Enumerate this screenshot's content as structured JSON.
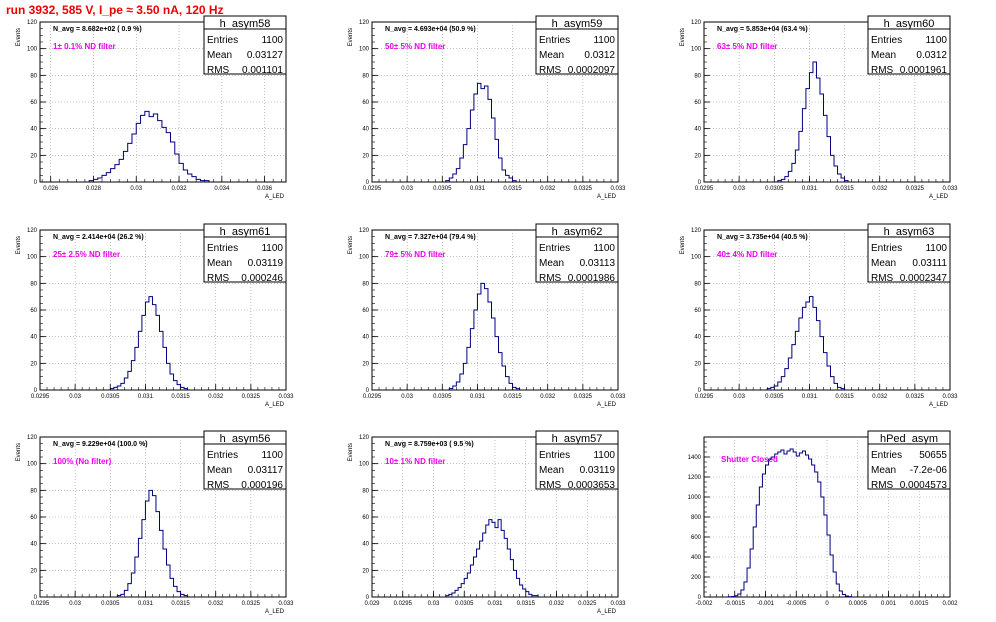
{
  "run_title": "run 3932,   585 V, I_pe ≈ 3.50 nA, 120 Hz",
  "colors": {
    "line": "#000080",
    "title_red": "#ee0000",
    "annot_magenta": "#ee00ee"
  },
  "stats_labels": {
    "entries": "Entries",
    "mean": "Mean",
    "rms": "RMS"
  },
  "chart_data": [
    {
      "type": "histogram",
      "name": "h_asym58",
      "ylabel": "Events",
      "xlabel": "A_LED",
      "navg": "N_avg = 8.682e+02 ( 0.9 %)",
      "filter": "1± 0.1% ND filter",
      "entries": "1100",
      "mean": "0.03127",
      "rms": "0.001101",
      "xlim": [
        0.0255,
        0.037
      ],
      "ylim": [
        0,
        120
      ],
      "xticks": [
        "0.026",
        "0.028",
        "0.03",
        "0.032",
        "0.034",
        "0.036"
      ],
      "xtick_values": [
        0.026,
        0.028,
        0.03,
        0.032,
        0.034,
        0.036
      ],
      "yticks": [
        "0",
        "20",
        "40",
        "60",
        "80",
        "100",
        "120"
      ],
      "bin_start": 0.0278,
      "bin_width": 0.0002,
      "values": [
        1,
        2,
        3,
        5,
        7,
        10,
        13,
        17,
        23,
        29,
        36,
        44,
        50,
        53,
        49,
        51,
        46,
        41,
        37,
        30,
        21,
        14,
        9,
        6,
        4,
        2,
        1,
        1
      ]
    },
    {
      "type": "histogram",
      "name": "h_asym59",
      "ylabel": "Events",
      "xlabel": "A_LED",
      "navg": "N_avg = 4.693e+04 (50.9 %)",
      "filter": "50± 5% ND filter",
      "entries": "1100",
      "mean": "0.0312",
      "rms": "0.0002097",
      "xlim": [
        0.0295,
        0.033
      ],
      "ylim": [
        0,
        120
      ],
      "xticks": [
        "0.0295",
        "0.03",
        "0.0305",
        "0.031",
        "0.0315",
        "0.032",
        "0.0325",
        "0.033"
      ],
      "xtick_values": [
        0.0295,
        0.03,
        0.0305,
        0.031,
        0.0315,
        0.032,
        0.0325,
        0.033
      ],
      "yticks": [
        "0",
        "20",
        "40",
        "60",
        "80",
        "100",
        "120"
      ],
      "bin_start": 0.03055,
      "bin_width": 5e-05,
      "values": [
        1,
        3,
        6,
        10,
        18,
        28,
        40,
        54,
        66,
        74,
        70,
        72,
        62,
        48,
        32,
        18,
        9,
        5,
        3,
        1
      ]
    },
    {
      "type": "histogram",
      "name": "h_asym60",
      "ylabel": "Events",
      "xlabel": "A_LED",
      "navg": "N_avg = 5.853e+04 (63.4 %)",
      "filter": "63± 5% ND filter",
      "entries": "1100",
      "mean": "0.0312",
      "rms": "0.0001961",
      "xlim": [
        0.0295,
        0.033
      ],
      "ylim": [
        0,
        120
      ],
      "xticks": [
        "0.0295",
        "0.03",
        "0.0305",
        "0.031",
        "0.0315",
        "0.032",
        "0.0325",
        "0.033"
      ],
      "xtick_values": [
        0.0295,
        0.03,
        0.0305,
        0.031,
        0.0315,
        0.032,
        0.0325,
        0.033
      ],
      "yticks": [
        "0",
        "20",
        "40",
        "60",
        "80",
        "100",
        "120"
      ],
      "bin_start": 0.03055,
      "bin_width": 5e-05,
      "values": [
        1,
        2,
        4,
        8,
        14,
        24,
        38,
        55,
        70,
        82,
        90,
        78,
        66,
        50,
        34,
        20,
        12,
        6,
        3,
        1
      ]
    },
    {
      "type": "histogram",
      "name": "h_asym61",
      "ylabel": "Events",
      "xlabel": "A_LED",
      "navg": "N_avg = 2.414e+04 (26.2 %)",
      "filter": "25± 2.5% ND filter",
      "entries": "1100",
      "mean": "0.03119",
      "rms": "0.000246",
      "xlim": [
        0.0295,
        0.033
      ],
      "ylim": [
        0,
        120
      ],
      "xticks": [
        "0.0295",
        "0.03",
        "0.0305",
        "0.031",
        "0.0315",
        "0.032",
        "0.0325",
        "0.033"
      ],
      "xtick_values": [
        0.0295,
        0.03,
        0.0305,
        0.031,
        0.0315,
        0.032,
        0.0325,
        0.033
      ],
      "yticks": [
        "0",
        "20",
        "40",
        "60",
        "80",
        "100",
        "120"
      ],
      "bin_start": 0.0305,
      "bin_width": 5e-05,
      "values": [
        1,
        2,
        3,
        5,
        9,
        14,
        22,
        32,
        44,
        56,
        66,
        70,
        64,
        56,
        44,
        32,
        20,
        12,
        7,
        4,
        2,
        1
      ]
    },
    {
      "type": "histogram",
      "name": "h_asym62",
      "ylabel": "Events",
      "xlabel": "A_LED",
      "navg": "N_avg = 7.327e+04 (79.4 %)",
      "filter": "79± 5% ND filter",
      "entries": "1100",
      "mean": "0.03113",
      "rms": "0.0001986",
      "xlim": [
        0.0295,
        0.033
      ],
      "ylim": [
        0,
        120
      ],
      "xticks": [
        "0.0295",
        "0.03",
        "0.0305",
        "0.031",
        "0.0315",
        "0.032",
        "0.0325",
        "0.033"
      ],
      "xtick_values": [
        0.0295,
        0.03,
        0.0305,
        0.031,
        0.0315,
        0.032,
        0.0325,
        0.033
      ],
      "yticks": [
        "0",
        "20",
        "40",
        "60",
        "80",
        "100",
        "120"
      ],
      "bin_start": 0.0306,
      "bin_width": 5e-05,
      "values": [
        1,
        3,
        6,
        12,
        20,
        32,
        46,
        60,
        72,
        80,
        76,
        66,
        54,
        40,
        28,
        18,
        10,
        5,
        2,
        1
      ]
    },
    {
      "type": "histogram",
      "name": "h_asym63",
      "ylabel": "Events",
      "xlabel": "A_LED",
      "navg": "N_avg = 3.735e+04 (40.5 %)",
      "filter": "40± 4% ND filter",
      "entries": "1100",
      "mean": "0.03111",
      "rms": "0.0002347",
      "xlim": [
        0.0295,
        0.033
      ],
      "ylim": [
        0,
        120
      ],
      "xticks": [
        "0.0295",
        "0.03",
        "0.0305",
        "0.031",
        "0.0315",
        "0.032",
        "0.0325",
        "0.033"
      ],
      "xtick_values": [
        0.0295,
        0.03,
        0.0305,
        0.031,
        0.0315,
        0.032,
        0.0325,
        0.033
      ],
      "yticks": [
        "0",
        "20",
        "40",
        "60",
        "80",
        "100",
        "120"
      ],
      "bin_start": 0.0304,
      "bin_width": 5e-05,
      "values": [
        1,
        2,
        3,
        6,
        10,
        16,
        24,
        34,
        44,
        54,
        62,
        66,
        70,
        62,
        52,
        40,
        28,
        18,
        10,
        5,
        2,
        1
      ]
    },
    {
      "type": "histogram",
      "name": "h_asym56",
      "ylabel": "Events",
      "xlabel": "A_LED",
      "navg": "N_avg = 9.229e+04 (100.0 %)",
      "filter": "100% (No filter)",
      "entries": "1100",
      "mean": "0.03117",
      "rms": "0.000196",
      "xlim": [
        0.0295,
        0.033
      ],
      "ylim": [
        0,
        120
      ],
      "xticks": [
        "0.0295",
        "0.03",
        "0.0305",
        "0.031",
        "0.0315",
        "0.032",
        "0.0325",
        "0.033"
      ],
      "xtick_values": [
        0.0295,
        0.03,
        0.0305,
        0.031,
        0.0315,
        0.032,
        0.0325,
        0.033
      ],
      "yticks": [
        "0",
        "20",
        "40",
        "60",
        "80",
        "100",
        "120"
      ],
      "bin_start": 0.0306,
      "bin_width": 5e-05,
      "values": [
        1,
        2,
        5,
        10,
        18,
        30,
        44,
        58,
        72,
        80,
        76,
        64,
        50,
        36,
        24,
        14,
        8,
        4,
        2,
        1
      ]
    },
    {
      "type": "histogram",
      "name": "h_asym57",
      "ylabel": "Events",
      "xlabel": "A_LED",
      "navg": "N_avg = 8.759e+03 ( 9.5 %)",
      "filter": "10± 1% ND filter",
      "entries": "1100",
      "mean": "0.03119",
      "rms": "0.0003653",
      "xlim": [
        0.029,
        0.033
      ],
      "ylim": [
        0,
        120
      ],
      "xticks": [
        "0.029",
        "0.0295",
        "0.03",
        "0.0305",
        "0.031",
        "0.0315",
        "0.032",
        "0.0325",
        "0.033"
      ],
      "xtick_values": [
        0.029,
        0.0295,
        0.03,
        0.0305,
        0.031,
        0.0315,
        0.032,
        0.0325,
        0.033
      ],
      "yticks": [
        "0",
        "20",
        "40",
        "60",
        "80",
        "100",
        "120"
      ],
      "bin_start": 0.0302,
      "bin_width": 5e-05,
      "values": [
        1,
        2,
        3,
        5,
        7,
        10,
        14,
        18,
        24,
        30,
        36,
        42,
        48,
        54,
        58,
        56,
        52,
        58,
        50,
        44,
        36,
        28,
        20,
        14,
        9,
        6,
        4,
        2,
        1,
        1
      ]
    },
    {
      "type": "histogram",
      "name": "hPed_asym",
      "ylabel": "",
      "xlabel": "",
      "navg": "",
      "filter": "Shutter Closed",
      "entries": "50655",
      "mean": "-7.2e-06",
      "rms": "0.0004573",
      "xlim": [
        -0.002,
        0.002
      ],
      "ylim": [
        0,
        1600
      ],
      "xticks": [
        "-0.002",
        "-0.0015",
        "-0.001",
        "-0.0005",
        "0",
        "0.0005",
        "0.001",
        "0.0015",
        "0.002"
      ],
      "xtick_values": [
        -0.002,
        -0.0015,
        -0.001,
        -0.0005,
        0,
        0.0005,
        0.001,
        0.0015,
        0.002
      ],
      "yticks": [
        "0",
        "200",
        "400",
        "600",
        "800",
        "1000",
        "1200",
        "1400"
      ],
      "bin_start": -0.0016,
      "bin_width": 5e-05,
      "values": [
        2,
        5,
        12,
        30,
        70,
        150,
        290,
        480,
        700,
        920,
        1100,
        1230,
        1320,
        1380,
        1400,
        1430,
        1450,
        1470,
        1430,
        1460,
        1480,
        1450,
        1410,
        1440,
        1460,
        1420,
        1380,
        1320,
        1250,
        1150,
        1000,
        820,
        620,
        420,
        250,
        130,
        60,
        25,
        10,
        4
      ]
    }
  ]
}
